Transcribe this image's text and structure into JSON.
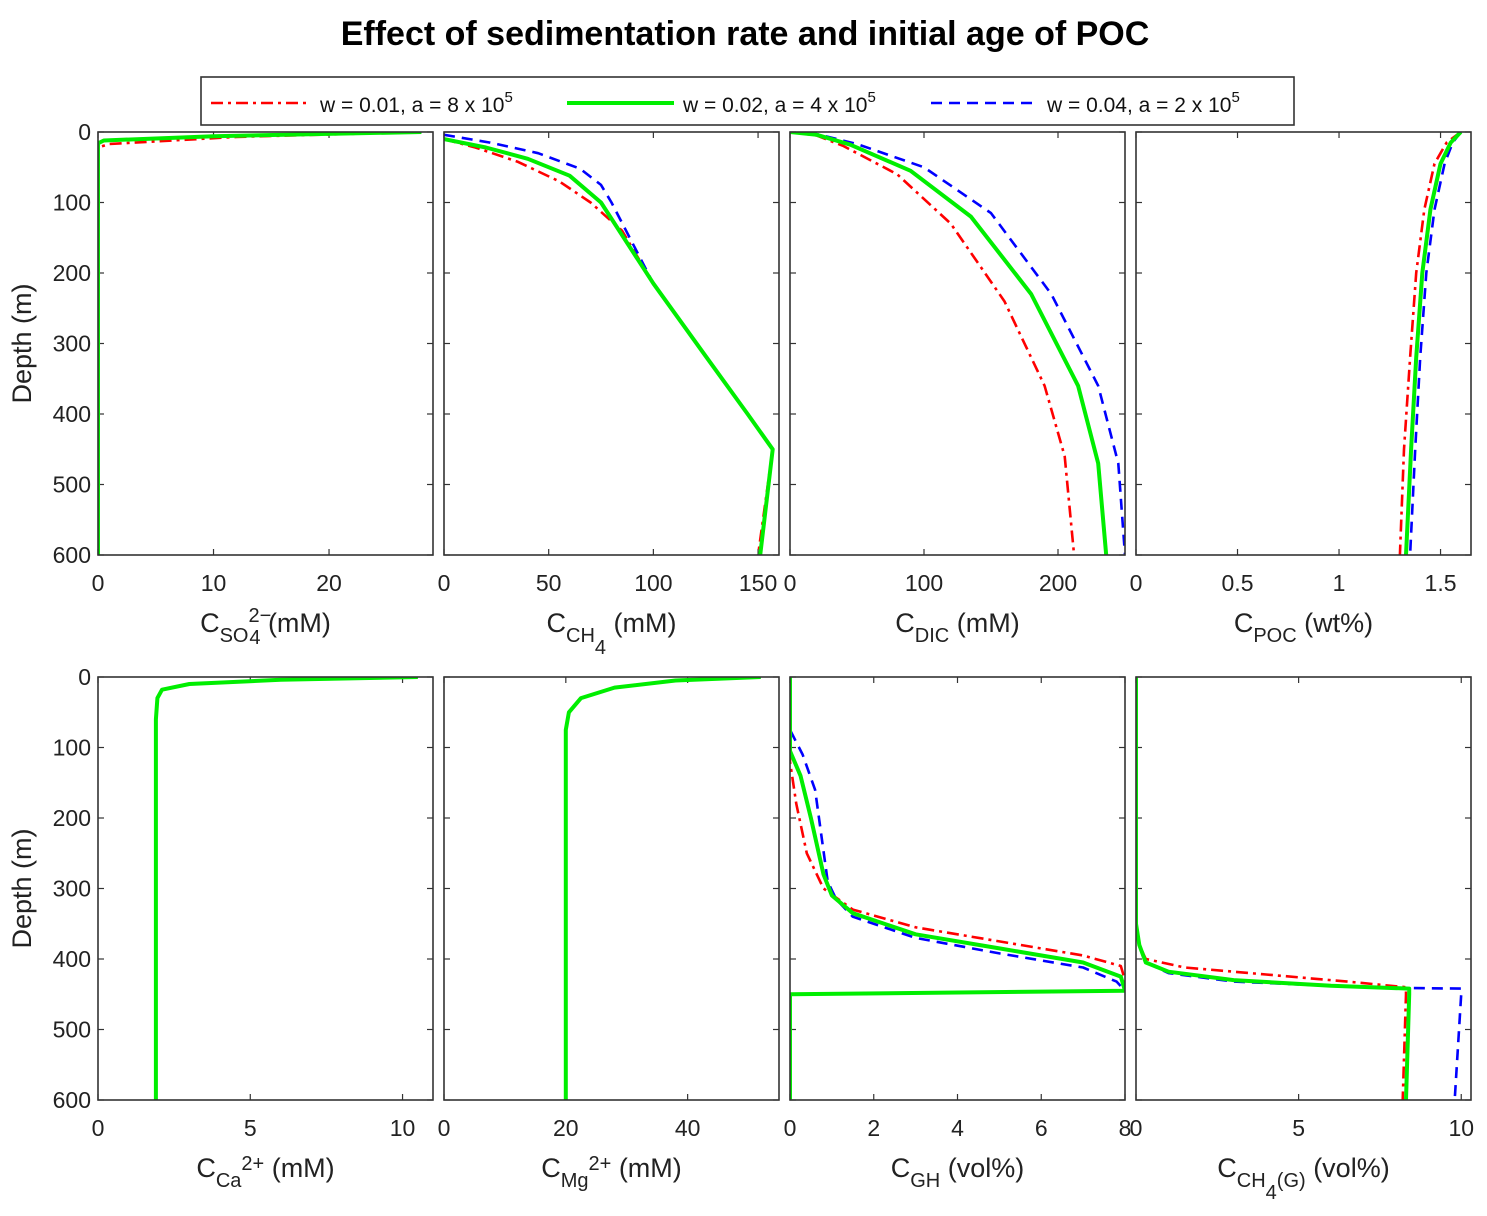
{
  "title": "Effect of sedimentation rate and initial age of POC",
  "chart_data": {
    "type": "line",
    "title": "Effect of sedimentation rate and initial age of POC",
    "ylabel": "Depth (m)",
    "ylim": [
      0,
      600
    ],
    "yticks": [
      "0",
      "100",
      "200",
      "300",
      "400",
      "500",
      "600"
    ],
    "legend": {
      "placement": "top-center",
      "entries": [
        {
          "id": "s1",
          "text": "w = 0.01, a = 8 x 10",
          "sup": "5",
          "color": "#ff0000",
          "style": "dashdot"
        },
        {
          "id": "s2",
          "text": "w = 0.02, a = 4 x 10",
          "sup": "5",
          "color": "#00ee00",
          "style": "solid"
        },
        {
          "id": "s3",
          "text": "w = 0.04, a = 2 x 10",
          "sup": "5",
          "color": "#0000ff",
          "style": "dashed"
        }
      ]
    },
    "panels": [
      {
        "id": "so4",
        "xlabel": {
          "base": "C",
          "sub": "SO",
          "sub2": "4",
          "sup": "2−",
          "unit": " (mM)"
        },
        "xlim": [
          0,
          29
        ],
        "xticks": [
          0,
          10,
          20
        ],
        "xticklabels": [
          "0",
          "10",
          "20"
        ],
        "series": {
          "s1": [
            [
              28,
              0
            ],
            [
              12,
              7
            ],
            [
              1,
              17
            ],
            [
              0,
              22
            ],
            [
              0,
              600
            ]
          ],
          "s2": [
            [
              28,
              0
            ],
            [
              10,
              6
            ],
            [
              0.5,
              12
            ],
            [
              0,
              16
            ],
            [
              0,
              600
            ]
          ],
          "s3": [
            [
              28,
              0
            ],
            [
              10,
              6
            ],
            [
              0.5,
              12
            ],
            [
              0,
              15
            ],
            [
              0,
              600
            ]
          ]
        }
      },
      {
        "id": "ch4",
        "xlabel": {
          "base": "C",
          "sub": "CH",
          "sub2": "4",
          "sup": "",
          "unit": " (mM)"
        },
        "xlim": [
          0,
          160
        ],
        "xticks": [
          0,
          50,
          100,
          150
        ],
        "xticklabels": [
          "0",
          "50",
          "100",
          "150"
        ],
        "series": {
          "s1": [
            [
              0,
              10
            ],
            [
              15,
              22
            ],
            [
              35,
              42
            ],
            [
              55,
              70
            ],
            [
              70,
              100
            ],
            [
              85,
              140
            ],
            [
              100,
              215
            ],
            [
              125,
              318
            ],
            [
              145,
              400
            ],
            [
              157,
              450
            ],
            [
              150,
              600
            ]
          ],
          "s2": [
            [
              0,
              10
            ],
            [
              20,
              22
            ],
            [
              40,
              38
            ],
            [
              60,
              62
            ],
            [
              75,
              100
            ],
            [
              100,
              215
            ],
            [
              125,
              318
            ],
            [
              145,
              400
            ],
            [
              157,
              450
            ],
            [
              151,
              600
            ]
          ],
          "s3": [
            [
              0,
              4
            ],
            [
              22,
              15
            ],
            [
              45,
              30
            ],
            [
              65,
              52
            ],
            [
              75,
              75
            ],
            [
              80,
              100
            ],
            [
              100,
              215
            ],
            [
              125,
              318
            ],
            [
              145,
              400
            ],
            [
              157,
              450
            ],
            [
              151,
              600
            ]
          ]
        }
      },
      {
        "id": "dic",
        "xlabel": {
          "base": "C",
          "sub": "DIC",
          "sub2": "",
          "sup": "",
          "unit": " (mM)"
        },
        "xlim": [
          0,
          250
        ],
        "xticks": [
          0,
          100,
          200
        ],
        "xticklabels": [
          "0",
          "100",
          "200"
        ],
        "series": {
          "s1": [
            [
              0,
              0
            ],
            [
              20,
              5
            ],
            [
              40,
              20
            ],
            [
              80,
              60
            ],
            [
              120,
              130
            ],
            [
              160,
              240
            ],
            [
              190,
              360
            ],
            [
              205,
              460
            ],
            [
              212,
              600
            ]
          ],
          "s2": [
            [
              0,
              0
            ],
            [
              20,
              4
            ],
            [
              45,
              18
            ],
            [
              90,
              55
            ],
            [
              135,
              120
            ],
            [
              180,
              230
            ],
            [
              215,
              360
            ],
            [
              230,
              470
            ],
            [
              236,
              600
            ]
          ],
          "s3": [
            [
              0,
              0
            ],
            [
              20,
              3
            ],
            [
              50,
              17
            ],
            [
              100,
              50
            ],
            [
              150,
              115
            ],
            [
              195,
              230
            ],
            [
              230,
              360
            ],
            [
              245,
              470
            ],
            [
              250,
              600
            ]
          ]
        }
      },
      {
        "id": "poc",
        "xlabel": {
          "base": "C",
          "sub": "POC",
          "sub2": "",
          "sup": "",
          "unit": " (wt%)"
        },
        "xlim": [
          0,
          1.65
        ],
        "xticks": [
          0,
          0.5,
          1,
          1.5
        ],
        "xticklabels": [
          "0",
          "0.5",
          "1",
          "1.5"
        ],
        "series": {
          "s1": [
            [
              1.6,
              0
            ],
            [
              1.53,
              15
            ],
            [
              1.47,
              45
            ],
            [
              1.42,
              110
            ],
            [
              1.38,
              200
            ],
            [
              1.35,
              320
            ],
            [
              1.32,
              450
            ],
            [
              1.3,
              600
            ]
          ],
          "s2": [
            [
              1.6,
              0
            ],
            [
              1.55,
              15
            ],
            [
              1.5,
              45
            ],
            [
              1.45,
              110
            ],
            [
              1.41,
              200
            ],
            [
              1.38,
              320
            ],
            [
              1.355,
              450
            ],
            [
              1.33,
              600
            ]
          ],
          "s3": [
            [
              1.6,
              0
            ],
            [
              1.56,
              15
            ],
            [
              1.52,
              45
            ],
            [
              1.47,
              110
            ],
            [
              1.43,
              200
            ],
            [
              1.4,
              320
            ],
            [
              1.375,
              450
            ],
            [
              1.35,
              600
            ]
          ]
        }
      },
      {
        "id": "ca",
        "xlabel": {
          "base": "C",
          "sub": "Ca",
          "sub2": "",
          "sup": "2+",
          "unit": " (mM)"
        },
        "xlim": [
          0,
          11
        ],
        "xticks": [
          0,
          5,
          10
        ],
        "xticklabels": [
          "0",
          "5",
          "10"
        ],
        "series": {
          "s1": [
            [
              10.5,
              0
            ],
            [
              6,
              4
            ],
            [
              3,
              10
            ],
            [
              2.1,
              18
            ],
            [
              1.95,
              30
            ],
            [
              1.9,
              60
            ],
            [
              1.9,
              600
            ]
          ],
          "s2": [
            [
              10.5,
              0
            ],
            [
              6,
              4
            ],
            [
              3,
              10
            ],
            [
              2.1,
              18
            ],
            [
              1.95,
              30
            ],
            [
              1.9,
              60
            ],
            [
              1.9,
              600
            ]
          ],
          "s3": [
            [
              10.5,
              0
            ],
            [
              6,
              4
            ],
            [
              3,
              10
            ],
            [
              2.1,
              18
            ],
            [
              1.95,
              30
            ],
            [
              1.9,
              60
            ],
            [
              1.9,
              600
            ]
          ]
        }
      },
      {
        "id": "mg",
        "xlabel": {
          "base": "C",
          "sub": "Mg",
          "sub2": "",
          "sup": "2+",
          "unit": " (mM)"
        },
        "xlim": [
          0,
          55
        ],
        "xticks": [
          0,
          20,
          40
        ],
        "xticklabels": [
          "0",
          "20",
          "40"
        ],
        "series": {
          "s1": [
            [
              52,
              0
            ],
            [
              38,
              5
            ],
            [
              28,
              15
            ],
            [
              22.5,
              30
            ],
            [
              20.5,
              50
            ],
            [
              20,
              75
            ],
            [
              20,
              600
            ]
          ],
          "s2": [
            [
              52,
              0
            ],
            [
              38,
              5
            ],
            [
              28,
              15
            ],
            [
              22.5,
              30
            ],
            [
              20.5,
              50
            ],
            [
              20,
              75
            ],
            [
              20,
              600
            ]
          ],
          "s3": [
            [
              52,
              0
            ],
            [
              38,
              5
            ],
            [
              28,
              15
            ],
            [
              22.5,
              30
            ],
            [
              20.5,
              50
            ],
            [
              20,
              75
            ],
            [
              20,
              600
            ]
          ]
        }
      },
      {
        "id": "gh",
        "xlabel": {
          "base": "C",
          "sub": "GH",
          "sub2": "",
          "sup": "",
          "unit": " (vol%)"
        },
        "xlim": [
          0,
          8
        ],
        "xticks": [
          0,
          2,
          4,
          6,
          8
        ],
        "xticklabels": [
          "0",
          "2",
          "4",
          "6",
          "8"
        ],
        "series": {
          "s1": [
            [
              0,
              0
            ],
            [
              0,
              120
            ],
            [
              0.15,
              180
            ],
            [
              0.4,
              250
            ],
            [
              0.8,
              300
            ],
            [
              1.5,
              330
            ],
            [
              3,
              355
            ],
            [
              5,
              375
            ],
            [
              7,
              395
            ],
            [
              7.9,
              410
            ],
            [
              8,
              430
            ],
            [
              8,
              445
            ],
            [
              0,
              450
            ],
            [
              0,
              600
            ]
          ],
          "s2": [
            [
              0,
              0
            ],
            [
              0,
              105
            ],
            [
              0.25,
              140
            ],
            [
              0.5,
              200
            ],
            [
              0.8,
              280
            ],
            [
              1,
              310
            ],
            [
              1.5,
              335
            ],
            [
              3,
              365
            ],
            [
              5,
              385
            ],
            [
              7,
              405
            ],
            [
              7.9,
              425
            ],
            [
              8,
              445
            ],
            [
              0,
              450
            ],
            [
              0,
              600
            ]
          ],
          "s3": [
            [
              0,
              0
            ],
            [
              0,
              75
            ],
            [
              0.3,
              110
            ],
            [
              0.6,
              160
            ],
            [
              0.9,
              290
            ],
            [
              1.1,
              315
            ],
            [
              1.5,
              340
            ],
            [
              3,
              370
            ],
            [
              5,
              392
            ],
            [
              7,
              412
            ],
            [
              7.8,
              432
            ],
            [
              8,
              445
            ],
            [
              0,
              450
            ],
            [
              0,
              600
            ]
          ]
        }
      },
      {
        "id": "ch4g",
        "xlabel": {
          "base": "C",
          "sub": "CH",
          "sub2": "4",
          "sub3": "(G)",
          "sup": "",
          "unit": " (vol%)"
        },
        "xlim": [
          0,
          10.3
        ],
        "xticks": [
          0,
          5,
          10
        ],
        "xticklabels": [
          "0",
          "5",
          "10"
        ],
        "series": {
          "s1": [
            [
              0,
              0
            ],
            [
              0,
              350
            ],
            [
              0.1,
              380
            ],
            [
              0.3,
              400
            ],
            [
              1.5,
              412
            ],
            [
              4,
              422
            ],
            [
              6.5,
              432
            ],
            [
              8.3,
              440
            ],
            [
              8.3,
              450
            ],
            [
              8.2,
              600
            ]
          ],
          "s2": [
            [
              0,
              0
            ],
            [
              0,
              350
            ],
            [
              0.1,
              380
            ],
            [
              0.3,
              405
            ],
            [
              1,
              418
            ],
            [
              3,
              430
            ],
            [
              6,
              438
            ],
            [
              8.4,
              442
            ],
            [
              8.4,
              450
            ],
            [
              8.3,
              600
            ]
          ],
          "s3": [
            [
              0,
              0
            ],
            [
              0,
              350
            ],
            [
              0.1,
              380
            ],
            [
              0.3,
              405
            ],
            [
              1,
              420
            ],
            [
              3,
              432
            ],
            [
              6.5,
              439
            ],
            [
              8,
              441
            ],
            [
              10,
              442
            ],
            [
              10,
              450
            ],
            [
              9.8,
              600
            ]
          ]
        }
      }
    ]
  }
}
